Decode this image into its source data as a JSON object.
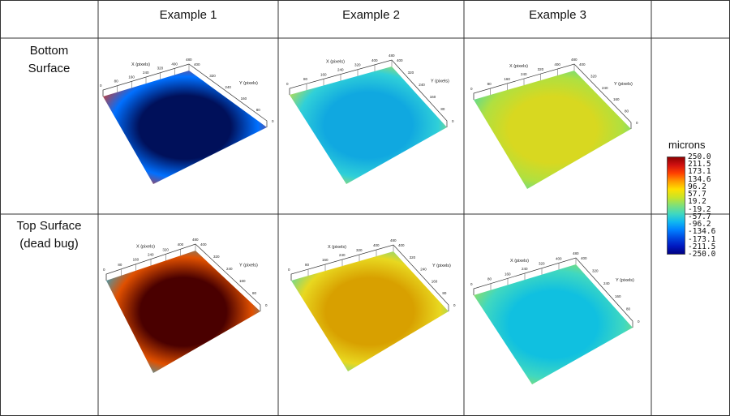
{
  "columns": [
    "Example 1",
    "Example 2",
    "Example 3"
  ],
  "rows": [
    {
      "label_line1": "Bottom",
      "label_line2": "Surface"
    },
    {
      "label_line1": "Top Surface",
      "label_line2": "(dead bug)"
    }
  ],
  "axis": {
    "x_label": "X (pixels)",
    "y_label": "Y (pixels)",
    "x_ticks": [
      "0",
      "80",
      "160",
      "240",
      "320",
      "400",
      "480"
    ],
    "y_ticks": [
      "0",
      "80",
      "160",
      "240",
      "320",
      "400"
    ]
  },
  "legend": {
    "title": "microns",
    "ticks": [
      "250.0",
      "211.5",
      "173.1",
      "134.6",
      "96.2",
      "57.7",
      "19.2",
      "-19.2",
      "-57.7",
      "-96.2",
      "-134.6",
      "-173.1",
      "-211.5",
      "-250.0"
    ],
    "colors": [
      "#8b0000",
      "#d01010",
      "#ff4000",
      "#ff9a00",
      "#ffe000",
      "#c8e428",
      "#7ee07a",
      "#40d8c0",
      "#10b8f0",
      "#0080ff",
      "#0048e0",
      "#0018c0",
      "#000080"
    ]
  },
  "plots": [
    {
      "row": 0,
      "col": 0,
      "center_color": "#00105a",
      "mid_color": "#0070ff",
      "edge_color": "#ff3000"
    },
    {
      "row": 0,
      "col": 1,
      "center_color": "#10a8e0",
      "mid_color": "#30d0d8",
      "edge_color": "#e8e020"
    },
    {
      "row": 0,
      "col": 2,
      "center_color": "#d8d820",
      "mid_color": "#b0e040",
      "edge_color": "#40d8b0"
    },
    {
      "row": 1,
      "col": 0,
      "center_color": "#4a0000",
      "mid_color": "#e05000",
      "edge_color": "#10b8f0"
    },
    {
      "row": 1,
      "col": 1,
      "center_color": "#d8a000",
      "mid_color": "#e8d820",
      "edge_color": "#40d8c0"
    },
    {
      "row": 1,
      "col": 2,
      "center_color": "#10c0e0",
      "mid_color": "#40d8c0",
      "edge_color": "#b0e040"
    }
  ]
}
